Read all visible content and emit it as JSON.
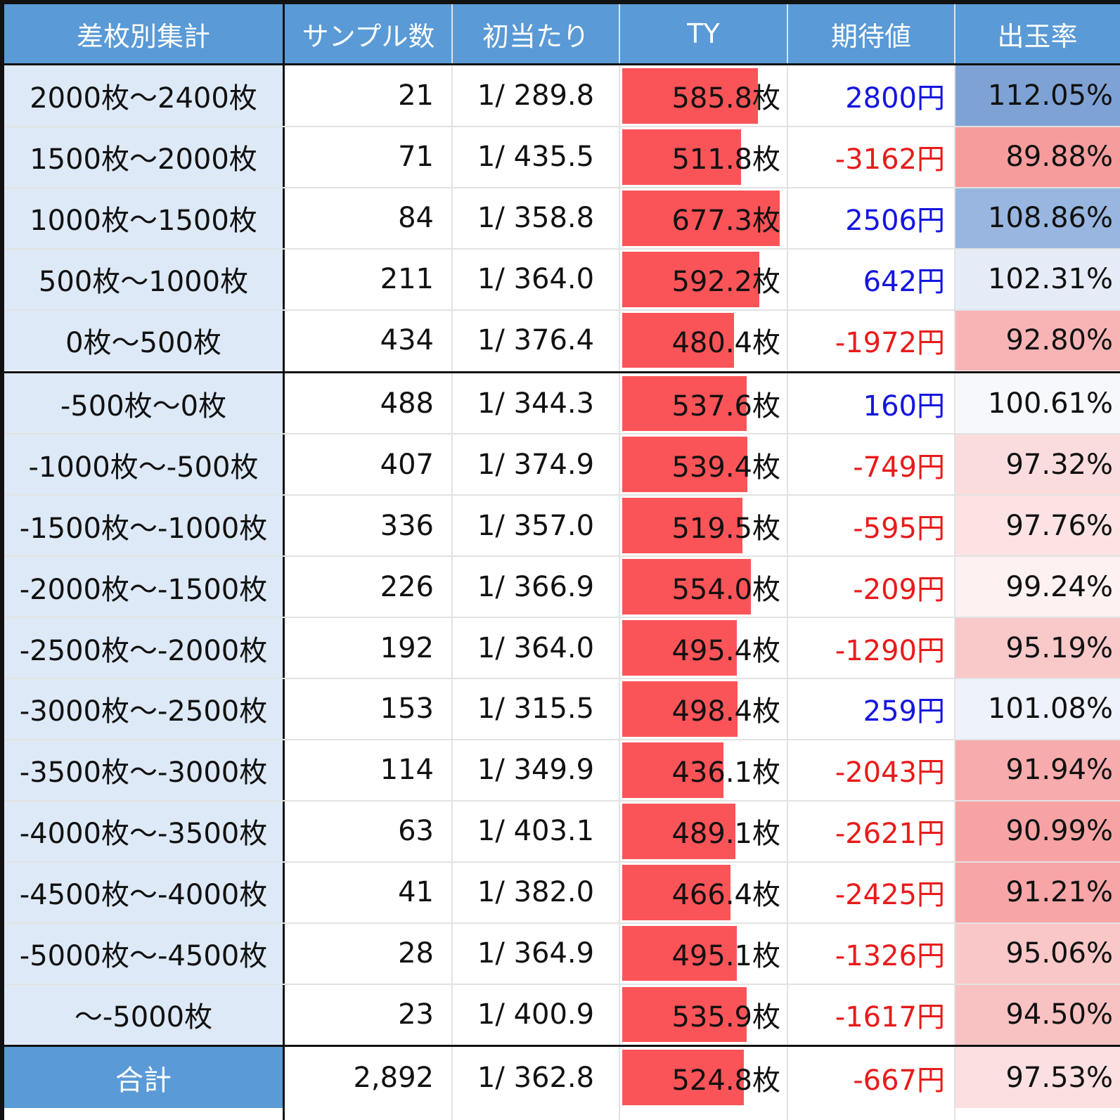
{
  "table": {
    "headers": [
      "差枚別集計",
      "サンプル数",
      "初当たり",
      "TY",
      "期待値",
      "出玉率"
    ],
    "rows": [
      {
        "range": "2000枚〜2400枚",
        "samples": "21",
        "first_hit": "1/ 289.8",
        "ty": "585.8枚",
        "ty_value": 585.8,
        "ev": "2800円",
        "ev_sign": "pos",
        "payout": "112.05%",
        "payout_bg": "#7fa2d4"
      },
      {
        "range": "1500枚〜2000枚",
        "samples": "71",
        "first_hit": "1/ 435.5",
        "ty": "511.8枚",
        "ty_value": 511.8,
        "ev": "-3162円",
        "ev_sign": "neg",
        "payout": "89.88%",
        "payout_bg": "#f69c9c"
      },
      {
        "range": "1000枚〜1500枚",
        "samples": "84",
        "first_hit": "1/ 358.8",
        "ty": "677.3枚",
        "ty_value": 677.3,
        "ev": "2506円",
        "ev_sign": "pos",
        "payout": "108.86%",
        "payout_bg": "#98b6e0"
      },
      {
        "range": "500枚〜1000枚",
        "samples": "211",
        "first_hit": "1/ 364.0",
        "ty": "592.2枚",
        "ty_value": 592.2,
        "ev": "642円",
        "ev_sign": "pos",
        "payout": "102.31%",
        "payout_bg": "#e5ecf7"
      },
      {
        "range": "0枚〜500枚",
        "samples": "434",
        "first_hit": "1/ 376.4",
        "ty": "480.4枚",
        "ty_value": 480.4,
        "ev": "-1972円",
        "ev_sign": "neg",
        "payout": "92.80%",
        "payout_bg": "#f8b4b5"
      },
      {
        "range": "-500枚〜0枚",
        "samples": "488",
        "first_hit": "1/ 344.3",
        "ty": "537.6枚",
        "ty_value": 537.6,
        "ev": "160円",
        "ev_sign": "pos",
        "payout": "100.61%",
        "payout_bg": "#f6f8fc"
      },
      {
        "range": "-1000枚〜-500枚",
        "samples": "407",
        "first_hit": "1/ 374.9",
        "ty": "539.4枚",
        "ty_value": 539.4,
        "ev": "-749円",
        "ev_sign": "neg",
        "payout": "97.32%",
        "payout_bg": "#fbdcdd"
      },
      {
        "range": "-1500枚〜-1000枚",
        "samples": "336",
        "first_hit": "1/ 357.0",
        "ty": "519.5枚",
        "ty_value": 519.5,
        "ev": "-595円",
        "ev_sign": "neg",
        "payout": "97.76%",
        "payout_bg": "#fce2e3"
      },
      {
        "range": "-2000枚〜-1500枚",
        "samples": "226",
        "first_hit": "1/ 366.9",
        "ty": "554.0枚",
        "ty_value": 554.0,
        "ev": "-209円",
        "ev_sign": "neg",
        "payout": "99.24%",
        "payout_bg": "#fdf1f1"
      },
      {
        "range": "-2500枚〜-2000枚",
        "samples": "192",
        "first_hit": "1/ 364.0",
        "ty": "495.4枚",
        "ty_value": 495.4,
        "ev": "-1290円",
        "ev_sign": "neg",
        "payout": "95.19%",
        "payout_bg": "#f9c8c9"
      },
      {
        "range": "-3000枚〜-2500枚",
        "samples": "153",
        "first_hit": "1/ 315.5",
        "ty": "498.4枚",
        "ty_value": 498.4,
        "ev": "259円",
        "ev_sign": "pos",
        "payout": "101.08%",
        "payout_bg": "#eef2fa"
      },
      {
        "range": "-3500枚〜-3000枚",
        "samples": "114",
        "first_hit": "1/ 349.9",
        "ty": "436.1枚",
        "ty_value": 436.1,
        "ev": "-2043円",
        "ev_sign": "neg",
        "payout": "91.94%",
        "payout_bg": "#f7abac"
      },
      {
        "range": "-4000枚〜-3500枚",
        "samples": "63",
        "first_hit": "1/ 403.1",
        "ty": "489.1枚",
        "ty_value": 489.1,
        "ev": "-2621円",
        "ev_sign": "neg",
        "payout": "90.99%",
        "payout_bg": "#f7a3a4"
      },
      {
        "range": "-4500枚〜-4000枚",
        "samples": "41",
        "first_hit": "1/ 382.0",
        "ty": "466.4枚",
        "ty_value": 466.4,
        "ev": "-2425円",
        "ev_sign": "neg",
        "payout": "91.21%",
        "payout_bg": "#f7a5a6"
      },
      {
        "range": "-5000枚〜-4500枚",
        "samples": "28",
        "first_hit": "1/ 364.9",
        "ty": "495.1枚",
        "ty_value": 495.1,
        "ev": "-1326円",
        "ev_sign": "neg",
        "payout": "95.06%",
        "payout_bg": "#f9c7c8"
      },
      {
        "range": "〜-5000枚",
        "samples": "23",
        "first_hit": "1/ 400.9",
        "ty": "535.9枚",
        "ty_value": 535.9,
        "ev": "-1617円",
        "ev_sign": "neg",
        "payout": "94.50%",
        "payout_bg": "#f8c1c2"
      }
    ],
    "total": {
      "range": "合計",
      "samples": "2,892",
      "first_hit": "1/ 362.8",
      "ty": "524.8枚",
      "ty_value": 524.8,
      "ev": "-667円",
      "ev_sign": "neg",
      "payout": "97.53%",
      "payout_bg": "#fcdfe0"
    },
    "ty_bar_max": 700,
    "colors": {
      "header_bg": "#5a9ad6",
      "label_bg": "#dde9f6",
      "ty_bar": "#fb5458",
      "ev_positive": "#1515e0",
      "ev_negative": "#e81b1b"
    }
  }
}
